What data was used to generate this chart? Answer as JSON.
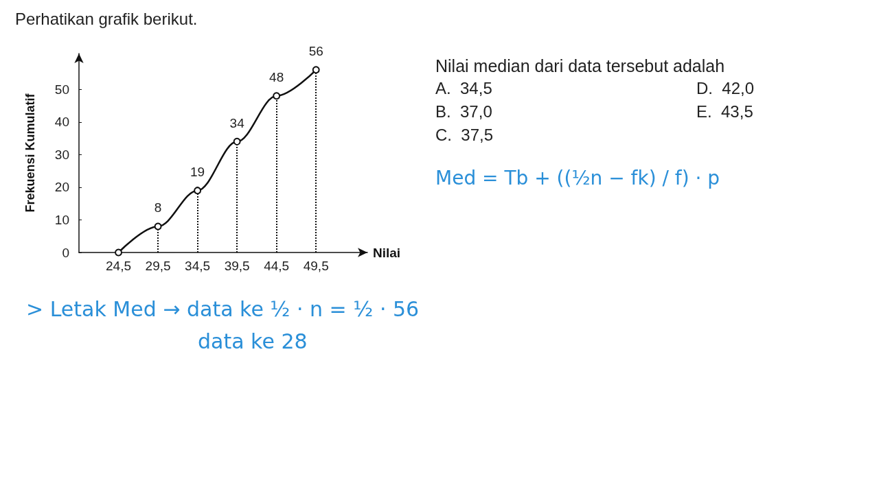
{
  "chart_data": {
    "type": "line",
    "title": "Perhatikan grafik berikut.",
    "xlabel": "Nilai",
    "ylabel": "Frekuensi Kumulatif",
    "x": [
      24.5,
      29.5,
      34.5,
      39.5,
      44.5,
      49.5
    ],
    "series": [
      {
        "color": "#111111",
        "values": [
          0,
          8,
          19,
          34,
          48,
          56
        ]
      }
    ],
    "xlim": [
      19.5,
      56
    ],
    "ylim": [
      0,
      61
    ],
    "xticks": [
      {
        "value": 24.5,
        "label": "24,5"
      },
      {
        "value": 29.5,
        "label": "29,5"
      },
      {
        "value": 34.5,
        "label": "34,5"
      },
      {
        "value": 39.5,
        "label": "39,5"
      },
      {
        "value": 44.5,
        "label": "44,5"
      },
      {
        "value": 49.5,
        "label": "49,5"
      }
    ],
    "yticks": [
      0,
      10,
      20,
      30,
      40,
      50
    ],
    "ref_lines": [
      {
        "axis": "x",
        "value": 29.5,
        "line_style": "dotted"
      },
      {
        "axis": "x",
        "value": 34.5,
        "line_style": "dotted"
      },
      {
        "axis": "x",
        "value": 39.5,
        "line_style": "dotted"
      },
      {
        "axis": "x",
        "value": 44.5,
        "line_style": "dotted"
      },
      {
        "axis": "x",
        "value": 49.5,
        "line_style": "dotted"
      }
    ],
    "value_labels": [
      null,
      "8",
      "19",
      "34",
      "48",
      "56"
    ],
    "grid": false,
    "marker": "circle",
    "line_style": "solid",
    "annotations": [
      "Nilai median dari data tersebut adalah",
      "A.  34,5",
      "B.  37,0",
      "C.  37,5",
      "D.  42,0",
      "E.  43,5",
      "Med = Tb + ((½n − fk) / f) · p",
      "> Letak Med → data ke ½ · n = ½ · 56",
      "data ke 28"
    ]
  }
}
